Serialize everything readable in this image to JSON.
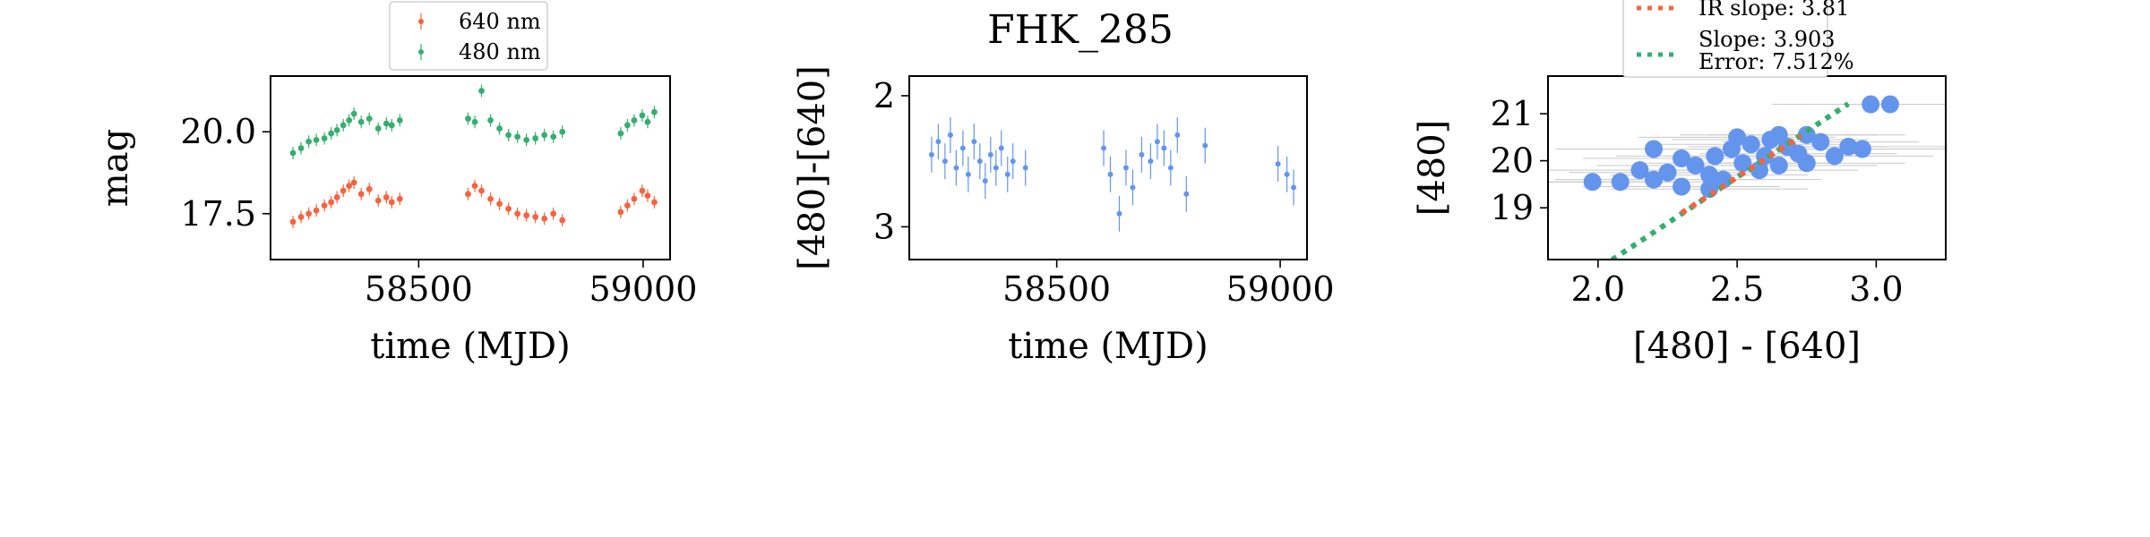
{
  "figure_title": "FHK_285",
  "colors": {
    "red": "#f4643f",
    "green": "#36ae6e",
    "blue": "#6495ed",
    "errorbar": "#c8c8c8"
  },
  "chart_data": [
    {
      "type": "scatter",
      "panel": "light-curves",
      "xlabel": "time (MJD)",
      "ylabel": "mag",
      "xlim": [
        58170,
        59060
      ],
      "ylim": [
        21.7,
        16.1
      ],
      "y_inverted": true,
      "xticks": [
        58500,
        59000
      ],
      "yticks": [
        17.5,
        20.0
      ],
      "xtick_labels": [
        "58500",
        "59000"
      ],
      "ytick_labels": [
        "17.5",
        "20.0"
      ],
      "legend_position": "above",
      "series": [
        {
          "name": "640 nm",
          "color": "#f4643f",
          "points": [
            [
              58220,
              17.25
            ],
            [
              58238,
              17.4
            ],
            [
              58255,
              17.5
            ],
            [
              58272,
              17.6
            ],
            [
              58290,
              17.75
            ],
            [
              58305,
              17.85
            ],
            [
              58318,
              18.0
            ],
            [
              58332,
              18.2
            ],
            [
              58345,
              18.35
            ],
            [
              58356,
              18.45
            ],
            [
              58372,
              18.1
            ],
            [
              58390,
              18.25
            ],
            [
              58410,
              17.9
            ],
            [
              58428,
              18.0
            ],
            [
              58440,
              17.85
            ],
            [
              58458,
              17.95
            ],
            [
              58610,
              18.1
            ],
            [
              58625,
              18.35
            ],
            [
              58640,
              18.2
            ],
            [
              58660,
              17.95
            ],
            [
              58680,
              17.8
            ],
            [
              58700,
              17.65
            ],
            [
              58720,
              17.5
            ],
            [
              58740,
              17.45
            ],
            [
              58760,
              17.4
            ],
            [
              58780,
              17.35
            ],
            [
              58800,
              17.5
            ],
            [
              58820,
              17.3
            ],
            [
              58950,
              17.55
            ],
            [
              58965,
              17.75
            ],
            [
              58980,
              17.95
            ],
            [
              58998,
              18.2
            ],
            [
              59010,
              18.05
            ],
            [
              59025,
              17.85
            ]
          ]
        },
        {
          "name": "480 nm",
          "color": "#36ae6e",
          "points": [
            [
              58220,
              19.35
            ],
            [
              58238,
              19.5
            ],
            [
              58255,
              19.7
            ],
            [
              58272,
              19.75
            ],
            [
              58290,
              19.8
            ],
            [
              58305,
              19.95
            ],
            [
              58318,
              20.05
            ],
            [
              58332,
              20.2
            ],
            [
              58345,
              20.35
            ],
            [
              58356,
              20.55
            ],
            [
              58372,
              20.3
            ],
            [
              58390,
              20.4
            ],
            [
              58410,
              20.1
            ],
            [
              58428,
              20.25
            ],
            [
              58440,
              20.2
            ],
            [
              58458,
              20.35
            ],
            [
              58610,
              20.4
            ],
            [
              58625,
              20.3
            ],
            [
              58640,
              21.25
            ],
            [
              58660,
              20.35
            ],
            [
              58680,
              20.1
            ],
            [
              58700,
              19.9
            ],
            [
              58720,
              19.85
            ],
            [
              58740,
              19.75
            ],
            [
              58760,
              19.8
            ],
            [
              58780,
              19.9
            ],
            [
              58800,
              19.85
            ],
            [
              58820,
              20.0
            ],
            [
              58950,
              19.95
            ],
            [
              58965,
              20.2
            ],
            [
              58980,
              20.35
            ],
            [
              58998,
              20.5
            ],
            [
              59010,
              20.3
            ],
            [
              59025,
              20.6
            ]
          ]
        }
      ]
    },
    {
      "type": "scatter",
      "panel": "color-curve",
      "xlabel": "time (MJD)",
      "ylabel": "[480]-[640]",
      "xlim": [
        58170,
        59060
      ],
      "ylim": [
        1.85,
        3.25
      ],
      "y_inverted": true,
      "xticks": [
        58500,
        59000
      ],
      "yticks": [
        2,
        3
      ],
      "xtick_labels": [
        "58500",
        "59000"
      ],
      "ytick_labels": [
        "2",
        "3"
      ],
      "series": [
        {
          "name": "",
          "color": "#6495ed",
          "points": [
            [
              58220,
              2.45
            ],
            [
              58235,
              2.35
            ],
            [
              58250,
              2.5
            ],
            [
              58262,
              2.3
            ],
            [
              58275,
              2.55
            ],
            [
              58290,
              2.4
            ],
            [
              58302,
              2.6
            ],
            [
              58315,
              2.35
            ],
            [
              58328,
              2.5
            ],
            [
              58340,
              2.65
            ],
            [
              58352,
              2.45
            ],
            [
              58364,
              2.55
            ],
            [
              58376,
              2.4
            ],
            [
              58390,
              2.6
            ],
            [
              58402,
              2.5
            ],
            [
              58430,
              2.55
            ],
            [
              58605,
              2.4
            ],
            [
              58620,
              2.6
            ],
            [
              58640,
              2.9
            ],
            [
              58655,
              2.55
            ],
            [
              58670,
              2.7
            ],
            [
              58690,
              2.45
            ],
            [
              58710,
              2.5
            ],
            [
              58725,
              2.35
            ],
            [
              58740,
              2.4
            ],
            [
              58755,
              2.55
            ],
            [
              58770,
              2.3
            ],
            [
              58790,
              2.75
            ],
            [
              58832,
              2.38
            ],
            [
              58995,
              2.52
            ],
            [
              59015,
              2.6
            ],
            [
              59030,
              2.7
            ]
          ]
        }
      ]
    },
    {
      "type": "scatter",
      "panel": "color-magnitude",
      "xlabel": "[480] - [640]",
      "ylabel": "[480]",
      "xlim": [
        1.82,
        3.25
      ],
      "ylim": [
        21.8,
        17.9
      ],
      "y_inverted": true,
      "xticks": [
        2.0,
        2.5,
        3.0
      ],
      "yticks": [
        19,
        20,
        21
      ],
      "xtick_labels": [
        "2.0",
        "2.5",
        "3.0"
      ],
      "ytick_labels": [
        "19",
        "20",
        "21"
      ],
      "legend_position": "above",
      "legend": [
        {
          "label": "IR slope: 3.81",
          "color": "#f4643f"
        },
        {
          "label_line1": "Slope: 3.903",
          "label_line2": "Error: 7.512%",
          "color": "#36ae6e"
        }
      ],
      "lines": [
        {
          "name": "IR slope",
          "slope": 3.81,
          "color": "#f4643f",
          "x_range": [
            2.3,
            2.73
          ],
          "y_at_x0": 19.65,
          "x0": 2.5
        },
        {
          "name": "Slope",
          "slope": 3.903,
          "color": "#36ae6e",
          "x_range": [
            2.05,
            2.9
          ],
          "y_at_x0": 19.65,
          "x0": 2.5
        }
      ],
      "series": [
        {
          "name": "",
          "color": "#6495ed",
          "points": [
            [
              1.98,
              19.55
            ],
            [
              2.08,
              19.55
            ],
            [
              2.15,
              19.8
            ],
            [
              2.2,
              19.6
            ],
            [
              2.25,
              19.75
            ],
            [
              2.3,
              19.45
            ],
            [
              2.35,
              19.9
            ],
            [
              2.4,
              19.7
            ],
            [
              2.42,
              20.1
            ],
            [
              2.45,
              19.6
            ],
            [
              2.48,
              20.25
            ],
            [
              2.52,
              19.95
            ],
            [
              2.55,
              20.35
            ],
            [
              2.58,
              19.8
            ],
            [
              2.6,
              20.1
            ],
            [
              2.62,
              20.45
            ],
            [
              2.65,
              19.9
            ],
            [
              2.68,
              20.3
            ],
            [
              2.72,
              20.15
            ],
            [
              2.75,
              19.95
            ],
            [
              2.8,
              20.4
            ],
            [
              2.85,
              20.1
            ],
            [
              2.9,
              20.3
            ],
            [
              2.95,
              20.25
            ],
            [
              2.98,
              21.2
            ],
            [
              3.05,
              21.2
            ],
            [
              2.3,
              20.05
            ],
            [
              2.2,
              20.25
            ],
            [
              2.5,
              20.5
            ],
            [
              2.4,
              19.4
            ],
            [
              2.65,
              20.55
            ],
            [
              2.75,
              20.55
            ]
          ]
        }
      ]
    }
  ]
}
